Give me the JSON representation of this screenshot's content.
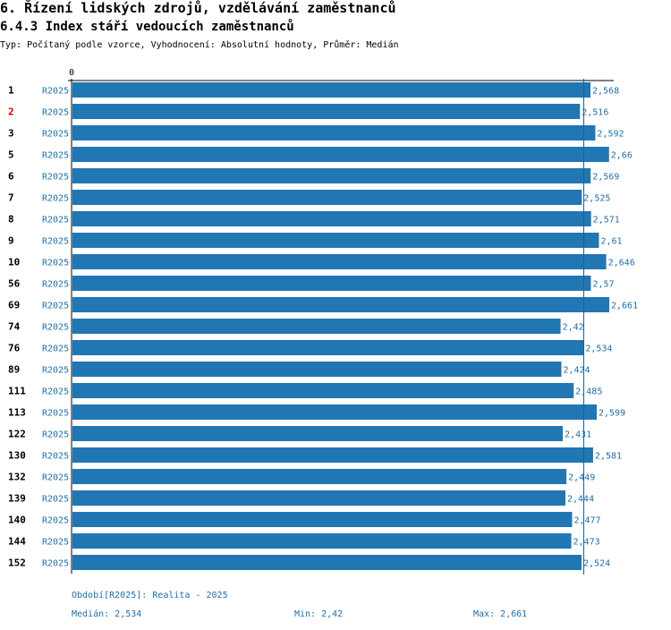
{
  "header": {
    "title": "6. Řízení lidských zdrojů, vzdělávání zaměstnanců",
    "subtitle": "6.4.3 Index stáří vedoucích zaměstnanců",
    "type_line": "Typ: Počítaný podle vzorce, Vyhodnocení: Absolutní hodnoty, Průměr: Medián"
  },
  "chart_data": {
    "type": "bar",
    "orientation": "horizontal",
    "x_axis_start_label": "0",
    "series_label": "R2025",
    "categories": [
      "1",
      "2",
      "3",
      "5",
      "6",
      "7",
      "8",
      "9",
      "10",
      "56",
      "69",
      "74",
      "76",
      "89",
      "111",
      "113",
      "122",
      "130",
      "132",
      "139",
      "140",
      "144",
      "152"
    ],
    "highlighted_category": "2",
    "values": [
      2.568,
      2.516,
      2.592,
      2.66,
      2.569,
      2.525,
      2.571,
      2.61,
      2.646,
      2.57,
      2.661,
      2.42,
      2.534,
      2.424,
      2.485,
      2.599,
      2.431,
      2.581,
      2.449,
      2.444,
      2.477,
      2.473,
      2.524
    ],
    "value_labels": [
      "2,568",
      "2,516",
      "2,592",
      "2,66",
      "2,569",
      "2,525",
      "2,571",
      "2,61",
      "2,646",
      "2,57",
      "2,661",
      "2,42",
      "2,534",
      "2,424",
      "2,485",
      "2,599",
      "2,431",
      "2,581",
      "2,449",
      "2,444",
      "2,477",
      "2,473",
      "2,524"
    ],
    "median": 2.534,
    "xlim": [
      0,
      2.661
    ],
    "colors": {
      "bar": "#2077b4",
      "label": "#1f6fa8",
      "highlight": "#d00000",
      "axis": "#000000"
    }
  },
  "footer": {
    "period": "Období[R2025]: Realita - 2025",
    "median": "Medián: 2,534",
    "min": "Min: 2,42",
    "max": "Max: 2,661"
  }
}
